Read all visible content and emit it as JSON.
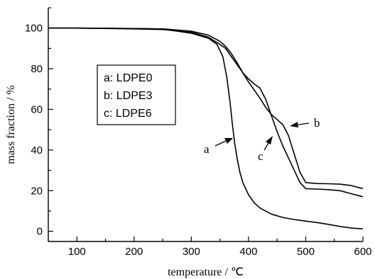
{
  "chart_data": {
    "type": "line",
    "xlabel": "temperature / ℃",
    "ylabel": "mass fraction / %",
    "xlim": [
      50,
      600
    ],
    "ylim": [
      -5,
      110
    ],
    "xticks": [
      100,
      200,
      300,
      400,
      500,
      600
    ],
    "yticks": [
      0,
      20,
      40,
      60,
      80,
      100
    ],
    "grid": false,
    "legend": {
      "placement": "upper-left",
      "entries": [
        "a: LDPE0",
        "b: LDPE3",
        "c: LDPE6"
      ]
    },
    "annotations": [
      {
        "text": "a",
        "series": "a"
      },
      {
        "text": "b",
        "series": "b"
      },
      {
        "text": "c",
        "series": "c"
      }
    ],
    "series": [
      {
        "name": "a",
        "x": [
          50,
          100,
          200,
          250,
          300,
          330,
          345,
          355,
          362,
          368,
          372,
          376,
          380,
          385,
          390,
          400,
          410,
          420,
          440,
          460,
          480,
          500,
          520,
          540,
          560,
          580,
          600
        ],
        "y": [
          100,
          100,
          99.8,
          99.5,
          97.5,
          95,
          92,
          86,
          76,
          63,
          52,
          43,
          36,
          29,
          24,
          18,
          14,
          11.5,
          8.5,
          6.8,
          5.8,
          5,
          4.3,
          3.4,
          2.4,
          1.6,
          1.2
        ]
      },
      {
        "name": "b",
        "x": [
          50,
          100,
          200,
          250,
          300,
          330,
          350,
          360,
          370,
          380,
          390,
          400,
          410,
          420,
          430,
          440,
          450,
          460,
          470,
          480,
          490,
          500,
          520,
          540,
          560,
          580,
          600
        ],
        "y": [
          100,
          100,
          99.8,
          99.6,
          98.5,
          96.5,
          93.5,
          91,
          87.5,
          83,
          78,
          73.5,
          69.5,
          65.5,
          61,
          57.5,
          55,
          52.5,
          47,
          38,
          29,
          24,
          23.5,
          23.4,
          23.2,
          22.5,
          21
        ]
      },
      {
        "name": "c",
        "x": [
          50,
          100,
          200,
          250,
          300,
          330,
          350,
          360,
          370,
          380,
          390,
          400,
          410,
          420,
          430,
          440,
          450,
          460,
          470,
          480,
          490,
          500,
          520,
          540,
          560,
          580,
          600
        ],
        "y": [
          100,
          100,
          99.6,
          99.3,
          98,
          95.5,
          92,
          90,
          86,
          82,
          78,
          75,
          72.5,
          70.5,
          65,
          57,
          49,
          42,
          36,
          30,
          24,
          21,
          20.8,
          20.5,
          20,
          18.5,
          17
        ]
      }
    ]
  }
}
